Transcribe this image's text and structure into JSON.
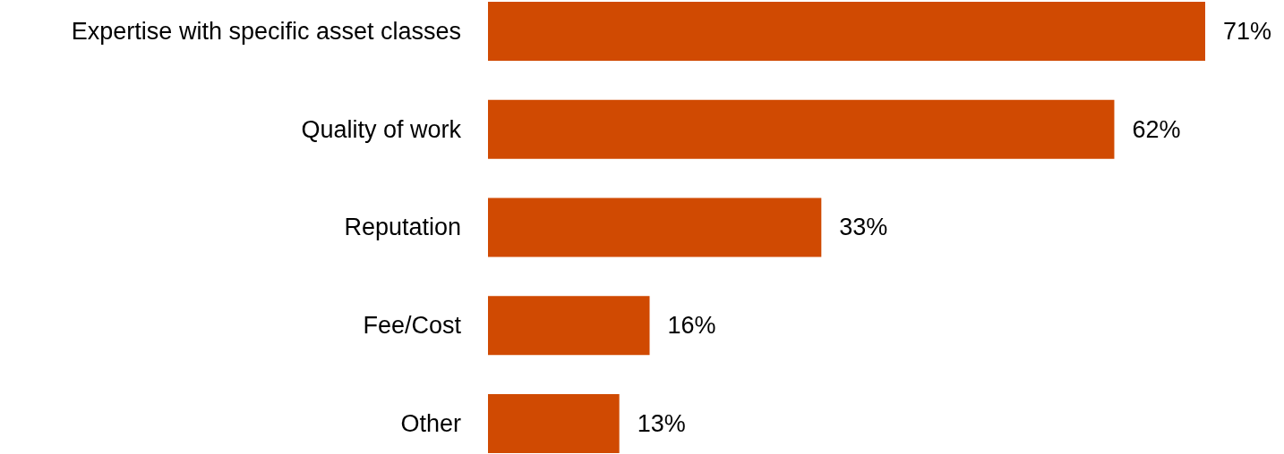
{
  "chart_data": {
    "type": "bar",
    "orientation": "horizontal",
    "categories": [
      "Expertise with specific asset classes",
      "Quality of work",
      "Reputation",
      "Fee/Cost",
      "Other"
    ],
    "values": [
      71,
      62,
      33,
      16,
      13
    ],
    "value_labels": [
      "71%",
      "62%",
      "33%",
      "16%",
      "13%"
    ],
    "color": "#d04a02"
  }
}
